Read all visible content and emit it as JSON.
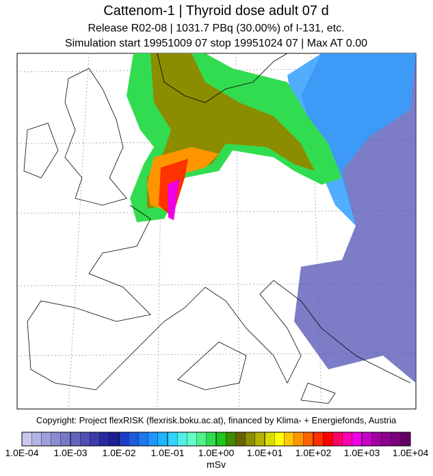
{
  "title": "Cattenom-1 | Thyroid dose adult  07 d",
  "subtitle_lines": [
    "Release R02-08 | 1031.7 PBq (30.00%) of I-131, etc.",
    "Simulation start 19951009 07  stop 19951024 07 | Max AT    0.00"
  ],
  "copyright": "Copyright: Project flexRISK (flexrisk.boku.ac.at), financed by Klima- + Energiefonds, Austria",
  "colorbar": {
    "labels": [
      "1.0E-04",
      "1.0E-03",
      "1.0E-02",
      "1.0E-01",
      "1.0E+00",
      "1.0E+01",
      "1.0E+02",
      "1.0E+03",
      "1.0E+04"
    ],
    "unit": "mSv",
    "colors": [
      "#c8c8f0",
      "#b4b4e6",
      "#a0a0dc",
      "#8c8cd2",
      "#7878c8",
      "#6464be",
      "#5050b4",
      "#3c3caa",
      "#2828a0",
      "#1e1e96",
      "#1e3cc8",
      "#1e5adc",
      "#1e78f0",
      "#1e96ff",
      "#1eb4ff",
      "#32d2ff",
      "#50f0e6",
      "#64ffc8",
      "#50f08c",
      "#32dc50",
      "#1ec81e",
      "#3c8c00",
      "#646400",
      "#8c8c00",
      "#b4b400",
      "#dcdc00",
      "#ffff00",
      "#ffc800",
      "#ff9600",
      "#ff6400",
      "#ff3200",
      "#ff0000",
      "#ff0064",
      "#ff00b4",
      "#f000e6",
      "#c800c8",
      "#a000a0",
      "#8c008c",
      "#780078",
      "#640064"
    ]
  }
}
